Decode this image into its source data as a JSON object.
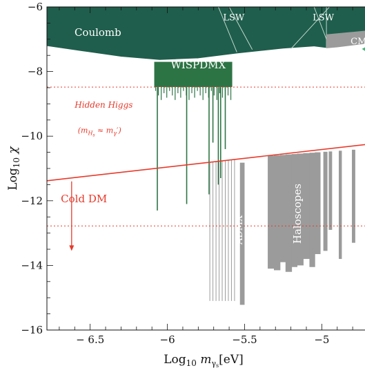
{
  "chart_data": {
    "type": "area",
    "title": "",
    "xlabel": "Log10 mγs[eV]",
    "ylabel": "Log10 χ",
    "xlim": [
      -6.78,
      -4.68
    ],
    "ylim": [
      -16,
      -6
    ],
    "x_ticks": [
      {
        "v": -6.5,
        "label": "− 6.5"
      },
      {
        "v": -6.0,
        "label": "−6"
      },
      {
        "v": -5.5,
        "label": "−5.5"
      },
      {
        "v": -5.0,
        "label": "−5"
      }
    ],
    "y_ticks": [
      {
        "v": -6,
        "label": "−6"
      },
      {
        "v": -8,
        "label": "−8"
      },
      {
        "v": -10,
        "label": "−10"
      },
      {
        "v": -12,
        "label": "−12"
      },
      {
        "v": -14,
        "label": "−14"
      },
      {
        "v": -16,
        "label": "−16"
      }
    ],
    "colors": {
      "excluded_dark": "#1f5e4c",
      "wispdmx": "#2d7445",
      "haloscopes": "#9b9b9b",
      "red": "#e8392a",
      "light_green": "#3fb871"
    },
    "regions": [
      {
        "name": "Coulomb",
        "label": "Coulomb",
        "label_at": [
          -6.45,
          -6.9
        ]
      },
      {
        "name": "LSW",
        "label": "LSW",
        "label_at": [
          -5.57,
          -6.42
        ]
      },
      {
        "name": "LSW2",
        "label": "LSW",
        "label_at": [
          -4.99,
          -6.42
        ]
      },
      {
        "name": "CMB",
        "label": "CMB",
        "label_at": [
          -4.74,
          -7.15
        ]
      },
      {
        "name": "WISPDMX",
        "label": "WISPDMX",
        "label_at": [
          -5.8,
          -7.9
        ]
      },
      {
        "name": "ADMX",
        "label": "ADMX",
        "label_at": [
          -5.515,
          -12.9
        ]
      },
      {
        "name": "Haloscopes",
        "label": "Haloscopes",
        "label_at": [
          -5.135,
          -12.4
        ]
      }
    ],
    "coulomb_boundary": [
      [
        -6.78,
        -7.22
      ],
      [
        -6.55,
        -7.38
      ],
      [
        -6.3,
        -7.55
      ],
      [
        -6.05,
        -7.65
      ],
      [
        -5.8,
        -7.6
      ],
      [
        -5.55,
        -7.45
      ],
      [
        -5.25,
        -7.3
      ],
      [
        -5.05,
        -7.23
      ],
      [
        -4.97,
        -7.28
      ],
      [
        -4.9,
        -7.25
      ],
      [
        -4.68,
        -7.12
      ]
    ],
    "wispdmx_box": {
      "x": [
        -6.085,
        -5.58
      ],
      "y": [
        -7.7,
        -8.48
      ]
    },
    "wispdmx_spikes": [
      {
        "x": -6.065,
        "bottom": -12.3
      },
      {
        "x": -5.875,
        "bottom": -12.1
      },
      {
        "x": -5.73,
        "bottom": -11.8
      },
      {
        "x": -5.705,
        "bottom": -10.2
      },
      {
        "x": -5.67,
        "bottom": -11.5
      },
      {
        "x": -5.655,
        "bottom": -11.3
      },
      {
        "x": -5.625,
        "bottom": -10.4
      }
    ],
    "admx_block": [
      [
        -5.53,
        -10.82
      ],
      [
        -5.5,
        -10.82
      ],
      [
        -5.5,
        -15.22
      ],
      [
        -5.53,
        -15.22
      ]
    ],
    "admx_lines": [
      -5.725,
      -5.705,
      -5.685,
      -5.665,
      -5.645,
      -5.625,
      -5.605,
      -5.585,
      -5.565
    ],
    "admx_lines_bottom": -15.1,
    "haloscope_bars": [
      {
        "x0": -5.35,
        "x1": -5.31,
        "bottom": -14.1
      },
      {
        "x0": -5.31,
        "x1": -5.27,
        "bottom": -14.15
      },
      {
        "x0": -5.27,
        "x1": -5.235,
        "bottom": -13.9
      },
      {
        "x0": -5.235,
        "x1": -5.195,
        "bottom": -14.2
      },
      {
        "x0": -5.195,
        "x1": -5.16,
        "bottom": -14.05
      },
      {
        "x0": -5.16,
        "x1": -5.12,
        "bottom": -14.0
      },
      {
        "x0": -5.12,
        "x1": -5.08,
        "bottom": -13.8
      },
      {
        "x0": -5.08,
        "x1": -5.045,
        "bottom": -14.05
      },
      {
        "x0": -5.045,
        "x1": -5.01,
        "bottom": -13.65
      },
      {
        "x0": -4.99,
        "x1": -4.965,
        "bottom": -13.55
      },
      {
        "x0": -4.955,
        "x1": -4.935,
        "bottom": -12.9
      },
      {
        "x0": -4.89,
        "x1": -4.872,
        "bottom": -13.8
      },
      {
        "x0": -4.805,
        "x1": -4.785,
        "bottom": -13.3
      }
    ],
    "haloscope_top": {
      "x": [
        -5.35,
        -4.785
      ],
      "y": [
        -10.62,
        -10.42
      ]
    },
    "cold_dm_line": {
      "x": [
        -6.78,
        -4.68
      ],
      "y": [
        -11.38,
        -10.24
      ],
      "label": "Cold DM",
      "label_at": [
        -6.69,
        -12.05
      ]
    },
    "cold_dm_arrow": {
      "x": -6.62,
      "from": -11.4,
      "to": -13.55
    },
    "hidden_higgs_lines": [
      -8.48,
      -12.78
    ],
    "hidden_higgs": {
      "label": "Hidden Higgs",
      "label_at": [
        -6.6,
        -9.12
      ]
    },
    "hidden_higgs_sub": {
      "label_at": [
        -6.58,
        -9.9
      ]
    }
  }
}
